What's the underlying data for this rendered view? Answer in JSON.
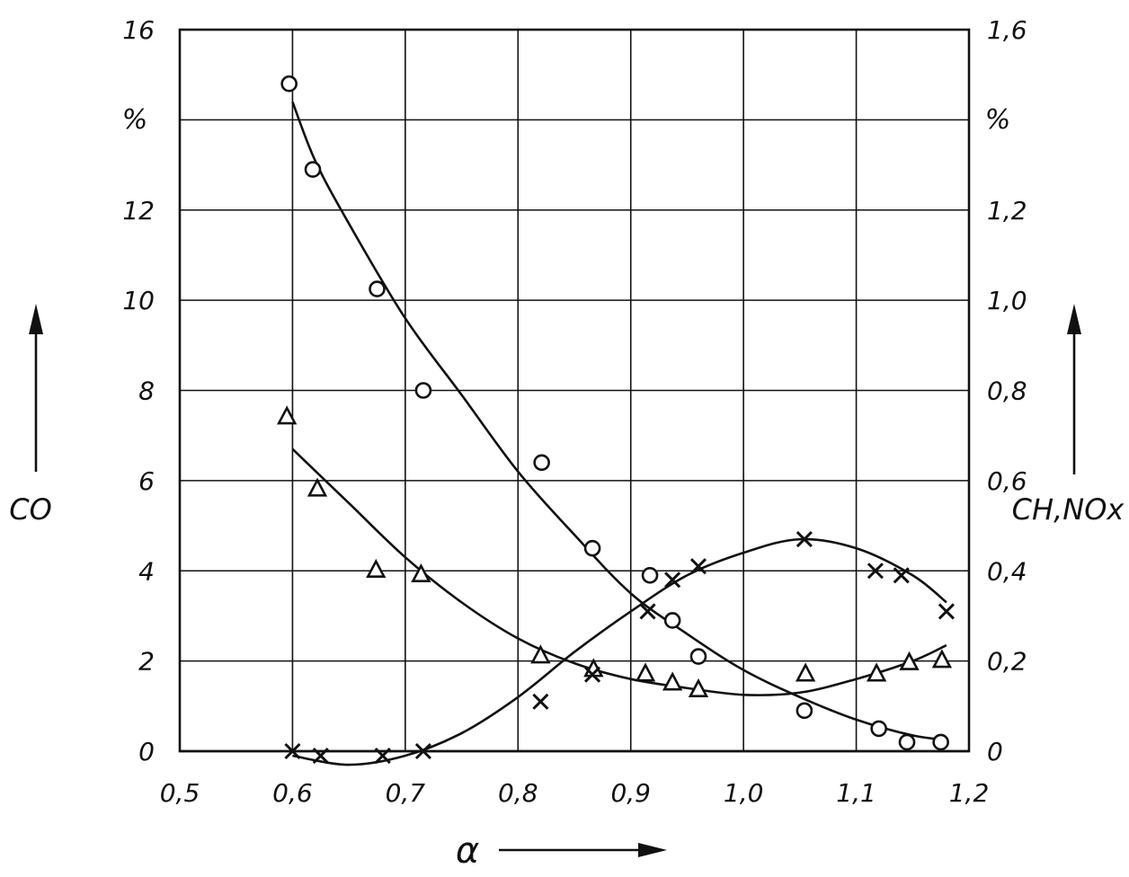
{
  "chart_data": {
    "type": "scatter",
    "title": "",
    "xlabel": "α",
    "ylabel_left": "CO",
    "ylabel_right": "CH,NOx",
    "unit_left": "%",
    "unit_right": "%",
    "xlim": [
      0.5,
      1.2
    ],
    "ylim_left": [
      0,
      16
    ],
    "ylim_right": [
      0,
      1.6
    ],
    "grid": true,
    "x_ticks": [
      "0,5",
      "0,6",
      "0,7",
      "0,8",
      "0,9",
      "1,0",
      "1,1",
      "1,2"
    ],
    "y_left_ticks": [
      "0",
      "2",
      "4",
      "6",
      "8",
      "10",
      "12",
      "16"
    ],
    "y_right_ticks": [
      "0",
      "0,2",
      "0,4",
      "0,6",
      "0,8",
      "1,0",
      "1,2",
      "1,6"
    ],
    "series": [
      {
        "marker": "circle",
        "axis": "left",
        "points": [
          [
            0.597,
            14.8
          ],
          [
            0.618,
            12.9
          ],
          [
            0.675,
            10.25
          ],
          [
            0.716,
            8.0
          ],
          [
            0.821,
            6.4
          ],
          [
            0.866,
            4.5
          ],
          [
            0.917,
            3.9
          ],
          [
            0.937,
            2.9
          ],
          [
            0.96,
            2.1
          ],
          [
            1.054,
            0.9
          ],
          [
            1.12,
            0.5
          ],
          [
            1.145,
            0.2
          ],
          [
            1.175,
            0.2
          ]
        ],
        "fit": [
          [
            0.6,
            14.4
          ],
          [
            0.62,
            13.1
          ],
          [
            0.65,
            11.7
          ],
          [
            0.7,
            9.6
          ],
          [
            0.75,
            7.9
          ],
          [
            0.8,
            6.2
          ],
          [
            0.85,
            4.8
          ],
          [
            0.9,
            3.5
          ],
          [
            0.95,
            2.6
          ],
          [
            1.0,
            1.8
          ],
          [
            1.05,
            1.2
          ],
          [
            1.1,
            0.7
          ],
          [
            1.15,
            0.35
          ],
          [
            1.18,
            0.25
          ]
        ]
      },
      {
        "marker": "triangle",
        "axis": "left",
        "points": [
          [
            0.595,
            7.4
          ],
          [
            0.622,
            5.8
          ],
          [
            0.674,
            4.0
          ],
          [
            0.714,
            3.9
          ],
          [
            0.82,
            2.1
          ],
          [
            0.867,
            1.8
          ],
          [
            0.913,
            1.7
          ],
          [
            0.937,
            1.5
          ],
          [
            0.96,
            1.35
          ],
          [
            1.055,
            1.7
          ],
          [
            1.118,
            1.7
          ],
          [
            1.147,
            1.95
          ],
          [
            1.176,
            2.0
          ]
        ],
        "fit": [
          [
            0.6,
            6.7
          ],
          [
            0.65,
            5.5
          ],
          [
            0.7,
            4.3
          ],
          [
            0.75,
            3.3
          ],
          [
            0.8,
            2.5
          ],
          [
            0.85,
            1.95
          ],
          [
            0.9,
            1.6
          ],
          [
            0.95,
            1.4
          ],
          [
            1.0,
            1.25
          ],
          [
            1.05,
            1.3
          ],
          [
            1.1,
            1.6
          ],
          [
            1.15,
            2.0
          ],
          [
            1.18,
            2.35
          ]
        ]
      },
      {
        "marker": "x",
        "axis": "right",
        "points": [
          [
            0.6,
            0.0
          ],
          [
            0.625,
            -0.01
          ],
          [
            0.68,
            -0.01
          ],
          [
            0.716,
            0.0
          ],
          [
            0.82,
            0.11
          ],
          [
            0.866,
            0.17
          ],
          [
            0.915,
            0.31
          ],
          [
            0.937,
            0.38
          ],
          [
            0.96,
            0.41
          ],
          [
            1.054,
            0.47
          ],
          [
            1.117,
            0.4
          ],
          [
            1.14,
            0.39
          ],
          [
            1.18,
            0.31
          ]
        ],
        "fit": [
          [
            0.6,
            -0.01
          ],
          [
            0.65,
            -0.03
          ],
          [
            0.7,
            -0.01
          ],
          [
            0.75,
            0.04
          ],
          [
            0.8,
            0.12
          ],
          [
            0.85,
            0.22
          ],
          [
            0.9,
            0.31
          ],
          [
            0.95,
            0.39
          ],
          [
            1.0,
            0.44
          ],
          [
            1.05,
            0.47
          ],
          [
            1.1,
            0.45
          ],
          [
            1.15,
            0.39
          ],
          [
            1.18,
            0.33
          ]
        ]
      }
    ]
  }
}
